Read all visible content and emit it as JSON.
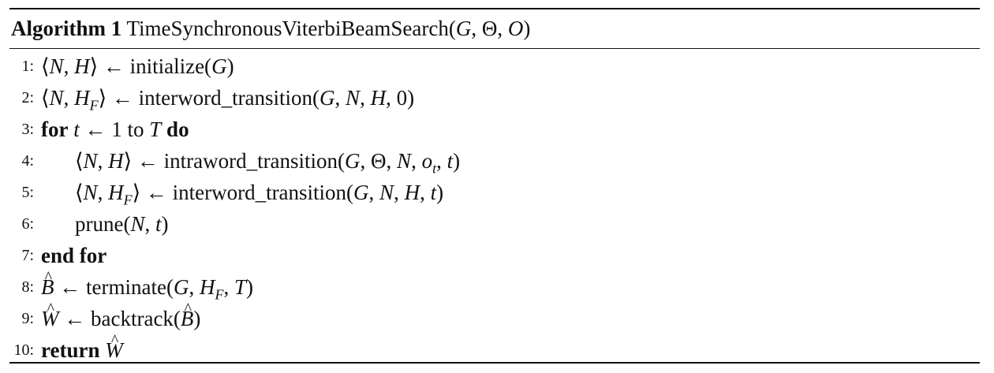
{
  "algorithm": {
    "label": "Algorithm 1",
    "name": "TimeSynchronousViterbiBeamSearch",
    "params": "(G, Θ, O)"
  },
  "lines": [
    {
      "num": "1:",
      "text": "⟨N, H⟩ ← initialize(G)"
    },
    {
      "num": "2:",
      "text": "⟨N, H_F⟩ ← interword_transition(G, N, H, 0)"
    },
    {
      "num": "3:",
      "text": "for t ← 1 to T do"
    },
    {
      "num": "4:",
      "text": "⟨N, H⟩ ← intraword_transition(G, Θ, N, o_t, t)"
    },
    {
      "num": "5:",
      "text": "⟨N, H_F⟩ ← interword_transition(G, N, H, t)"
    },
    {
      "num": "6:",
      "text": "prune(N, t)"
    },
    {
      "num": "7:",
      "text": "end for"
    },
    {
      "num": "8:",
      "text": "B̂ ← terminate(G, H_F, T)"
    },
    {
      "num": "9:",
      "text": "Ŵ ← backtrack(B̂)"
    },
    {
      "num": "10:",
      "text": "return Ŵ"
    }
  ]
}
